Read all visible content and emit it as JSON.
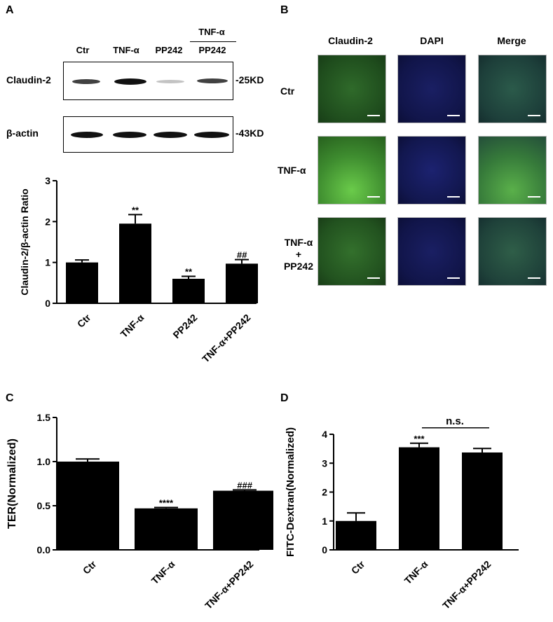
{
  "panels": {
    "a": "A",
    "b": "B",
    "c": "C",
    "d": "D"
  },
  "blot": {
    "header_group": "TNF-α",
    "lanes": [
      "Ctr",
      "TNF-α",
      "PP242",
      "PP242"
    ],
    "rows": [
      {
        "label": "Claudin-2",
        "size": "-25KD",
        "intensity": [
          0.75,
          1.0,
          0.2,
          0.7
        ]
      },
      {
        "label": "β-actin",
        "size": "-43KD",
        "intensity": [
          1.0,
          1.0,
          1.0,
          1.0
        ]
      }
    ]
  },
  "micrographs": {
    "columns": [
      "Claudin-2",
      "DAPI",
      "Merge"
    ],
    "rows": [
      {
        "label_lines": [
          "Ctr"
        ]
      },
      {
        "label_lines": [
          "TNF-α"
        ]
      },
      {
        "label_lines": [
          "TNF-α",
          "+",
          "PP242"
        ]
      }
    ]
  },
  "chart_data": [
    {
      "type": "bar",
      "panel": "A",
      "categories": [
        "Ctr",
        "TNF-α",
        "PP242",
        "TNF-α+PP242"
      ],
      "values": [
        1.0,
        1.95,
        0.6,
        0.97
      ],
      "errors": [
        0.06,
        0.22,
        0.06,
        0.1
      ],
      "annotations": [
        "",
        "**",
        "**",
        "##"
      ],
      "ylabel": "Claudin-2/β-actin Ratio",
      "ylim": [
        0,
        3
      ],
      "yticks": [
        "0",
        "1",
        "2",
        "3"
      ]
    },
    {
      "type": "bar",
      "panel": "C",
      "categories": [
        "Ctr",
        "TNF-α",
        "TNF-α+PP242"
      ],
      "values": [
        1.0,
        0.47,
        0.67
      ],
      "errors": [
        0.03,
        0.01,
        0.01
      ],
      "annotations": [
        "",
        "****",
        "###"
      ],
      "ylabel": "TER(Normalized)",
      "ylim": [
        0,
        1.5
      ],
      "yticks": [
        "0.0",
        "0.5",
        "1.0",
        "1.5"
      ]
    },
    {
      "type": "bar",
      "panel": "D",
      "categories": [
        "Ctr",
        "TNF-α",
        "TNF-α+PP242"
      ],
      "values": [
        1.0,
        3.55,
        3.37
      ],
      "errors": [
        0.28,
        0.14,
        0.14
      ],
      "annotations": [
        "",
        "***",
        ""
      ],
      "bracket": {
        "label": "n.s.",
        "from": 1,
        "to": 2
      },
      "ylabel": "FITC-Dextran(Normalized)",
      "ylim": [
        0,
        4
      ],
      "yticks": [
        "0",
        "1",
        "2",
        "3",
        "4"
      ]
    }
  ]
}
